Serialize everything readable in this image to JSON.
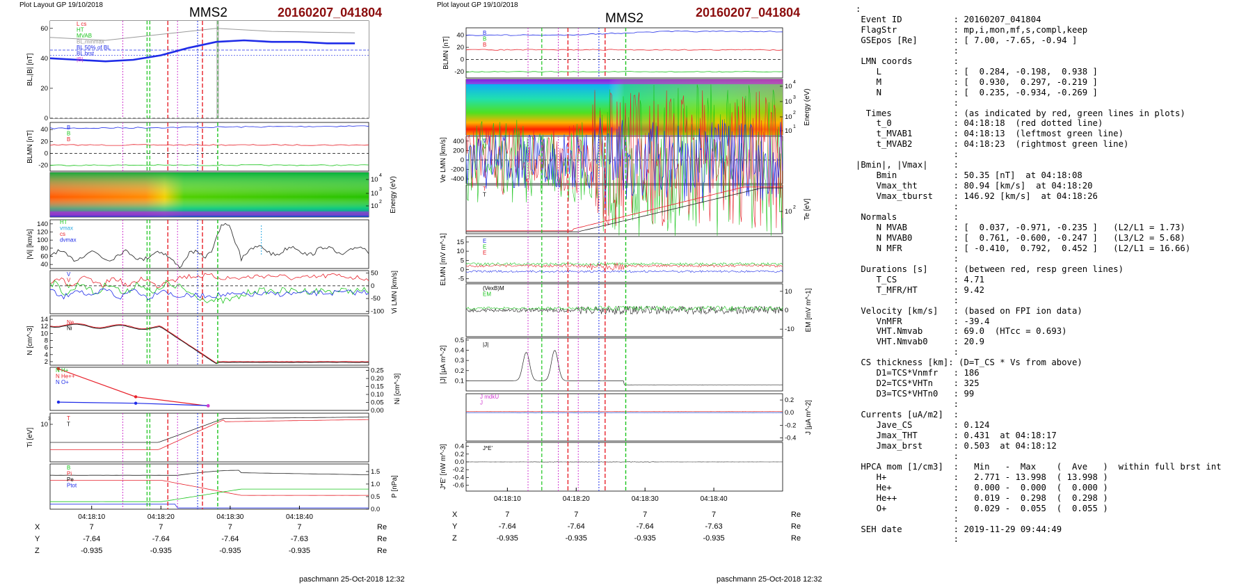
{
  "header_left": "Plot Layout GP 19/10/2018",
  "header_mid": "Plot layout GP 19/10/2018",
  "spacecraft": "MMS2",
  "event_title": "20160207_041804",
  "footer": "paschmann 25-Oct-2018 12:32",
  "colors": {
    "red": "#e8212a",
    "green": "#19c41b",
    "blue": "#1f2ce8",
    "black": "#000000",
    "magenta": "#d13bd1",
    "gray": "#9a9a9a",
    "darkred": "#8b0d0d"
  },
  "time_ticks": [
    "04:18:10",
    "04:18:20",
    "04:18:30",
    "04:18:40"
  ],
  "ephemeris": {
    "rows": [
      {
        "name": "X",
        "values": [
          "7",
          "7",
          "7",
          "7"
        ],
        "unit": "Re"
      },
      {
        "name": "Y",
        "values": [
          "-7.64",
          "-7.64",
          "-7.64",
          "-7.63"
        ],
        "unit": "Re"
      },
      {
        "name": "Z",
        "values": [
          "-0.935",
          "-0.935",
          "-0.935",
          "-0.935"
        ],
        "unit": "Re"
      }
    ]
  },
  "chart_data": [
    {
      "type": "line",
      "title": "",
      "panel": "left-1",
      "ylabel": "BL,|B| [nT]",
      "ylim": [
        0,
        60
      ],
      "yticks": [
        "60",
        "40",
        "20",
        "0"
      ],
      "legend": [
        "L cs",
        "HT",
        "MVAB",
        "BL,minmax",
        "BL 50% of BL",
        "BL brst",
        "|B|"
      ],
      "series": [
        {
          "name": "BL",
          "x": [
            4,
            8,
            12,
            16,
            20,
            24,
            28,
            32,
            36,
            40,
            44,
            48
          ],
          "values": [
            40,
            39,
            38,
            39,
            42,
            47,
            51,
            52,
            51,
            51,
            50,
            50
          ]
        },
        {
          "name": "|B|",
          "x": [
            4,
            12,
            20,
            28,
            36,
            48
          ],
          "values": [
            54,
            52,
            56,
            60,
            58,
            57
          ]
        }
      ]
    },
    {
      "type": "line",
      "panel": "left-2",
      "ylabel": "BLMN [nT]",
      "ylim": [
        -30,
        50
      ],
      "yticks": [
        "40",
        "20",
        "0",
        "-20"
      ],
      "legend": [
        "BL",
        "BM",
        "BN"
      ],
      "series": [
        {
          "name": "BL",
          "x": [
            4,
            20,
            48
          ],
          "values": [
            42,
            44,
            46
          ]
        },
        {
          "name": "BM",
          "x": [
            4,
            20,
            48
          ],
          "values": [
            14,
            14,
            15
          ]
        },
        {
          "name": "BN",
          "x": [
            4,
            20,
            48
          ],
          "values": [
            -22,
            -20,
            -21
          ]
        }
      ]
    },
    {
      "type": "heatmap",
      "panel": "left-3",
      "ylabel": "Energy (eV)",
      "yticks": [
        "10^4",
        "10^3",
        "10^2"
      ]
    },
    {
      "type": "line",
      "panel": "left-4",
      "ylabel": "|Vi| [km/s]",
      "ylim": [
        30,
        150
      ],
      "yticks": [
        "140",
        "120",
        "100",
        "80",
        "60",
        "40"
      ],
      "legend": [
        "HT",
        "vmax",
        "cs",
        "dvmax"
      ]
    },
    {
      "type": "line",
      "panel": "left-5",
      "ylabel": "Vi LMN [km/s]",
      "ylim": [
        -110,
        60
      ],
      "yticks": [
        "50",
        "0",
        "-50",
        "-100"
      ],
      "legend": [
        "VL",
        "VM",
        "VN"
      ]
    },
    {
      "type": "line",
      "panel": "left-6",
      "ylabel": "N [cm^-3]",
      "ylim": [
        1,
        15
      ],
      "yticks": [
        "14",
        "12",
        "10",
        "8",
        "6",
        "4",
        "2"
      ],
      "legend": [
        "Ne",
        "Ni"
      ]
    },
    {
      "type": "line",
      "panel": "left-7",
      "ylabel": "Ni [cm^-3]",
      "ylim": [
        0,
        0.27
      ],
      "yticks": [
        "0.25",
        "0.20",
        "0.15",
        "0.10",
        "0.05",
        "0.00"
      ],
      "legend": [
        "N He++",
        "N O+"
      ],
      "series": [
        {
          "name": "N He++",
          "x": [
            1,
            17,
            32
          ],
          "values": [
            0.26,
            0.085,
            0.028
          ]
        },
        {
          "name": "N O+",
          "x": [
            1,
            17,
            32
          ],
          "values": [
            0.052,
            0.045,
            0.03
          ]
        }
      ]
    },
    {
      "type": "line",
      "panel": "left-8",
      "ylabel": "Ti [eV]",
      "yticks": [
        "10^3"
      ],
      "legend": [
        "T||",
        "T⊥"
      ]
    },
    {
      "type": "line",
      "panel": "left-9",
      "ylabel": "P [nPa]",
      "ylim": [
        0,
        1.8
      ],
      "yticks": [
        "1.5",
        "1.0",
        "0.5",
        "0.0"
      ],
      "legend": [
        "B",
        "Pi",
        "Pe",
        "Ptot"
      ]
    },
    {
      "type": "line",
      "panel": "mid-1",
      "ylabel": "BLMN [nT]",
      "ylim": [
        -30,
        50
      ],
      "yticks": [
        "40",
        "20",
        "0",
        "-20"
      ],
      "legend": [
        "BL",
        "BM",
        "BN"
      ]
    },
    {
      "type": "heatmap",
      "panel": "mid-2",
      "ylabel": "Energy (eV)",
      "yticks": [
        "10^4",
        "10^3",
        "10^2",
        "10^1"
      ]
    },
    {
      "type": "line",
      "panel": "mid-3",
      "ylabel": "Ve LMN [km/s]",
      "ylim": [
        -500,
        500
      ],
      "yticks": [
        "400",
        "200",
        "0",
        "-200",
        "-400"
      ],
      "legend": [
        "VL",
        "VM",
        "VN"
      ]
    },
    {
      "type": "line",
      "panel": "mid-4",
      "ylabel": "Te [eV]",
      "yticks": [
        "10^2"
      ],
      "legend": [
        "T||",
        "T⊥"
      ]
    },
    {
      "type": "line",
      "panel": "mid-5",
      "ylabel": "ELMN [mV m^-1]",
      "ylim": [
        -7,
        18
      ],
      "yticks": [
        "15",
        "10",
        "5",
        "0",
        "-5"
      ],
      "legend": [
        "EL",
        "EM",
        "EN"
      ]
    },
    {
      "type": "line",
      "panel": "mid-6",
      "ylabel": "EM [mV m^-1]",
      "ylim": [
        -14,
        14
      ],
      "yticks": [
        "10",
        "0",
        "-10"
      ],
      "legend": [
        "(VexB)M",
        "EM"
      ]
    },
    {
      "type": "line",
      "panel": "mid-7",
      "ylabel": "|J| [μA m^-2]",
      "ylim": [
        0,
        0.5
      ],
      "yticks": [
        "0.5",
        "0.4",
        "0.3",
        "0.2",
        "0.1"
      ],
      "legend": [
        "|J|"
      ]
    },
    {
      "type": "line",
      "panel": "mid-8",
      "ylabel": "J [μA m^-2]",
      "ylim": [
        -0.45,
        0.3
      ],
      "yticks": [
        "0.2",
        "0.0",
        "-0.2",
        "-0.4"
      ],
      "legend": [
        "J mdkU",
        "J"
      ]
    },
    {
      "type": "line",
      "panel": "mid-9",
      "ylabel": "J*E' [nW m^-3]",
      "ylim": [
        -0.75,
        0.5
      ],
      "yticks": [
        "0.4",
        "0.2",
        "0.0",
        "-0.2",
        "-0.4",
        "-0.6"
      ],
      "legend": [
        "J*E'"
      ]
    }
  ],
  "info": [
    ":",
    " Event ID          : 20160207_041804",
    " FlagStr           : mp,i,mon,mf,s,compl,keep",
    " GSEpos [Re]       : [ 7.00, -7.65, -0.94 ]",
    "                   :",
    " LMN coords        :",
    "    L              : [  0.284, -0.198,  0.938 ]",
    "    M              : [  0.930,  0.297, -0.219 ]",
    "    N              : [  0.235, -0.934, -0.269 ]",
    "                   :",
    "  Times            : (as indicated by red, green lines in plots)",
    "    t_0            : 04:18:18  (red dotted line)",
    "    t_MVAB1        : 04:18:13  (leftmost green line)",
    "    t_MVAB2        : 04:18:23  (rightmost green line)",
    "                   :",
    "|Bmin|, |Vmax|     :",
    "    Bmin           : 50.35 [nT]  at 04:18:08",
    "    Vmax_tht       : 80.94 [km/s]  at 04:18:20",
    "    Vmax_tburst    : 146.92 [km/s]  at 04:18:26",
    "                   :",
    " Normals           :",
    "    N MVAB         : [  0.037, -0.971, -0.235 ]   (L2/L1 = 1.73)",
    "    N MVAB0        : [  0.761, -0.600, -0.247 ]   (L3/L2 = 5.68)",
    "    N MFR          : [ -0.410,  0.792,  0.452 ]   (L2/L1 = 16.66)",
    "                   :",
    " Durations [s]     : (between red, resp green lines)",
    "    T_CS           : 4.71",
    "    T_MFR/HT       : 9.42",
    "                   :",
    " Velocity [km/s]   : (based on FPI ion data)",
    "    VnMFR          : -39.4",
    "    VHT.Nmvab      : 69.0  (HTcc = 0.693)",
    "    VHT.Nmvab0     : 20.9",
    "                   :",
    " CS thickness [km]: (D=T_CS * Vs from above)",
    "    D1=TCS*Vnmfr   : 186",
    "    D2=TCS*VHTn    : 325",
    "    D3=TCS*VHTn0   : 99",
    "                   :",
    " Currents [uA/m2]  :",
    "    Jave_CS        : 0.124",
    "    Jmax_THT       : 0.431  at 04:18:17",
    "    Jmax_brst      : 0.503  at 04:18:12",
    "                   :",
    " HPCA mom [1/cm3]  :   Min   -  Max    (  Ave   )  within full brst int",
    "    H+             :   2.771 - 13.998  ( 13.998 )",
    "    He+            :   0.000 -  0.000  (  0.000 )",
    "    He++           :   0.019 -  0.298  (  0.298 )",
    "    O+             :   0.029 -  0.055  (  0.055 )",
    "                   :",
    " SEH date          : 2019-11-29 09:44:49",
    "                   :"
  ]
}
